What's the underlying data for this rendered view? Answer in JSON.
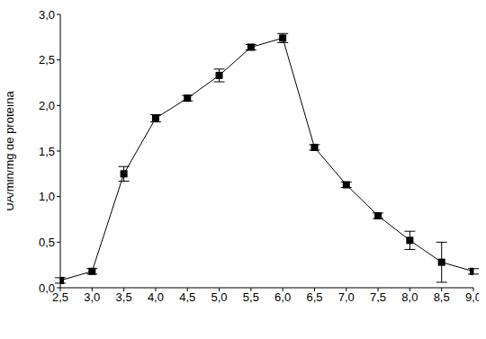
{
  "chart_data": {
    "type": "line",
    "y_label": "UA/min/mg de proteína",
    "x": [
      2.5,
      3.0,
      3.5,
      4.0,
      4.5,
      5.0,
      5.5,
      6.0,
      6.5,
      7.0,
      7.5,
      8.0,
      8.5,
      9.0
    ],
    "values": [
      0.08,
      0.18,
      1.25,
      1.86,
      2.08,
      2.33,
      2.64,
      2.74,
      1.54,
      1.13,
      0.79,
      0.52,
      0.28,
      0.18
    ],
    "errors": [
      0.03,
      0.03,
      0.08,
      0.04,
      0.03,
      0.07,
      0.03,
      0.05,
      0.03,
      0.03,
      0.03,
      0.1,
      0.22,
      0.03
    ],
    "color": "#000000",
    "marker": "square",
    "line_style": "solid",
    "grid": false,
    "xlim": [
      2.5,
      9.0
    ],
    "xticks": [
      {
        "value": 2.5,
        "label": "2,5"
      },
      {
        "value": 3.0,
        "label": "3,0"
      },
      {
        "value": 3.5,
        "label": "3,5"
      },
      {
        "value": 4.0,
        "label": "4,0"
      },
      {
        "value": 4.5,
        "label": "4,5"
      },
      {
        "value": 5.0,
        "label": "5,0"
      },
      {
        "value": 5.5,
        "label": "5,5"
      },
      {
        "value": 6.0,
        "label": "6,0"
      },
      {
        "value": 6.5,
        "label": "6,5"
      },
      {
        "value": 7.0,
        "label": "7,0"
      },
      {
        "value": 7.5,
        "label": "7,5"
      },
      {
        "value": 8.0,
        "label": "8,0"
      },
      {
        "value": 8.5,
        "label": "8,5"
      },
      {
        "value": 9.0,
        "label": "9,0"
      }
    ],
    "ylim": [
      0,
      3.0
    ],
    "yticks": [
      {
        "value": 0,
        "label": "0,0"
      },
      {
        "value": 0.5,
        "label": "0,5"
      },
      {
        "value": 1.0,
        "label": "1,0"
      },
      {
        "value": 1.5,
        "label": "1,5"
      },
      {
        "value": 2.0,
        "label": "2,0"
      },
      {
        "value": 2.5,
        "label": "2,5"
      },
      {
        "value": 3.0,
        "label": "3,0"
      }
    ]
  }
}
